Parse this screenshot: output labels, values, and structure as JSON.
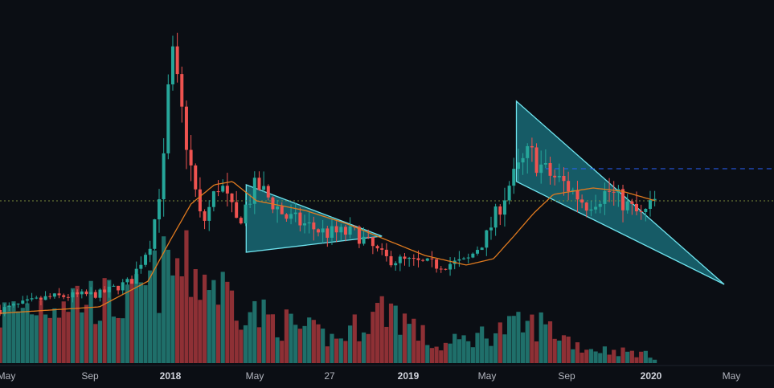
{
  "chart_data": {
    "type": "candlestick",
    "title": "",
    "x_axis": {
      "tick_labels": [
        "May",
        "Sep",
        "2018",
        "May",
        "27",
        "2019",
        "May",
        "Sep",
        "2020",
        "May"
      ],
      "bold_ticks": [
        "2018",
        "2019",
        "2020"
      ]
    },
    "y_axis": {
      "visible": false,
      "range": [
        0,
        100
      ]
    },
    "colors": {
      "background": "#0b0e14",
      "up_candle": "#26a69a",
      "down_candle": "#ef5350",
      "up_volume": "#1f6f6a",
      "down_volume": "#8e3035",
      "moving_average": "#e07a1f",
      "pattern_fill": "#26c6da",
      "pattern_stroke": "#6fe3ee",
      "resistance_line": "#2962ff",
      "price_line": "#7b8a3a"
    },
    "price_anchors": [
      {
        "date": "2017-04-01",
        "price": 3
      },
      {
        "date": "2017-06-15",
        "price": 7
      },
      {
        "date": "2017-09-01",
        "price": 8
      },
      {
        "date": "2017-10-20",
        "price": 12
      },
      {
        "date": "2017-11-20",
        "price": 25
      },
      {
        "date": "2017-12-10",
        "price": 50
      },
      {
        "date": "2017-12-20",
        "price": 84
      },
      {
        "date": "2018-01-06",
        "price": 64
      },
      {
        "date": "2018-01-20",
        "price": 47
      },
      {
        "date": "2018-02-06",
        "price": 29
      },
      {
        "date": "2018-03-05",
        "price": 43
      },
      {
        "date": "2018-04-01",
        "price": 30
      },
      {
        "date": "2018-05-01",
        "price": 42
      },
      {
        "date": "2018-06-15",
        "price": 32
      },
      {
        "date": "2018-08-15",
        "price": 27
      },
      {
        "date": "2018-10-01",
        "price": 27
      },
      {
        "date": "2018-11-15",
        "price": 19
      },
      {
        "date": "2019-02-01",
        "price": 17
      },
      {
        "date": "2019-03-20",
        "price": 18
      },
      {
        "date": "2019-04-20",
        "price": 26
      },
      {
        "date": "2019-05-25",
        "price": 42
      },
      {
        "date": "2019-06-25",
        "price": 52
      },
      {
        "date": "2019-07-20",
        "price": 46
      },
      {
        "date": "2019-08-20",
        "price": 42
      },
      {
        "date": "2019-09-20",
        "price": 36
      },
      {
        "date": "2019-10-25",
        "price": 40
      },
      {
        "date": "2019-12-15",
        "price": 32
      },
      {
        "date": "2020-01-05",
        "price": 37
      }
    ],
    "moving_average_anchors": [
      {
        "date": "2017-04-01",
        "price": 2
      },
      {
        "date": "2017-09-01",
        "price": 4
      },
      {
        "date": "2017-11-15",
        "price": 12
      },
      {
        "date": "2017-12-20",
        "price": 25
      },
      {
        "date": "2018-01-20",
        "price": 36
      },
      {
        "date": "2018-02-25",
        "price": 42
      },
      {
        "date": "2018-03-25",
        "price": 43
      },
      {
        "date": "2018-05-01",
        "price": 37
      },
      {
        "date": "2018-07-15",
        "price": 34
      },
      {
        "date": "2018-09-15",
        "price": 30
      },
      {
        "date": "2018-11-15",
        "price": 25
      },
      {
        "date": "2019-01-15",
        "price": 20
      },
      {
        "date": "2019-03-20",
        "price": 17
      },
      {
        "date": "2019-05-01",
        "price": 19
      },
      {
        "date": "2019-06-01",
        "price": 26
      },
      {
        "date": "2019-07-01",
        "price": 33
      },
      {
        "date": "2019-08-01",
        "price": 39
      },
      {
        "date": "2019-10-01",
        "price": 41
      },
      {
        "date": "2019-11-15",
        "price": 40
      },
      {
        "date": "2020-01-05",
        "price": 37
      }
    ],
    "volume_anchors": [
      {
        "date": "2017-04-01",
        "volume": 25
      },
      {
        "date": "2017-07-15",
        "volume": 35
      },
      {
        "date": "2017-10-15",
        "volume": 30
      },
      {
        "date": "2017-12-20",
        "volume": 50
      },
      {
        "date": "2018-02-10",
        "volume": 45
      },
      {
        "date": "2018-05-01",
        "volume": 25
      },
      {
        "date": "2018-09-01",
        "volume": 12
      },
      {
        "date": "2018-11-20",
        "volume": 30
      },
      {
        "date": "2019-02-01",
        "volume": 8
      },
      {
        "date": "2019-05-20",
        "volume": 18
      },
      {
        "date": "2019-07-15",
        "volume": 20
      },
      {
        "date": "2019-09-15",
        "volume": 8
      },
      {
        "date": "2019-12-15",
        "volume": 5
      },
      {
        "date": "2020-01-05",
        "volume": 3
      }
    ],
    "patterns": [
      {
        "name": "triangle",
        "points": [
          [
            "2018-04-15",
            42
          ],
          [
            "2018-11-10",
            26
          ],
          [
            "2018-04-15",
            21
          ]
        ]
      },
      {
        "name": "triangle",
        "points": [
          [
            "2019-06-05",
            68
          ],
          [
            "2020-04-20",
            11
          ],
          [
            "2019-06-05",
            43
          ]
        ]
      }
    ],
    "levels": [
      {
        "type": "resistance",
        "price": 47,
        "from": "2019-07-20",
        "style": "dashed"
      },
      {
        "type": "current_price",
        "price": 37,
        "style": "dotted"
      }
    ]
  }
}
